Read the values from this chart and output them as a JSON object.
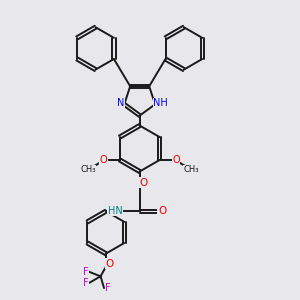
{
  "bg_color": "#e8e8ec",
  "bond_color": "#1a1a1a",
  "N_color": "#0000ee",
  "O_color": "#ee0000",
  "F_color": "#cc00cc",
  "H_color": "#008080",
  "line_width": 1.4,
  "figsize": [
    3.0,
    3.0
  ],
  "dpi": 100,
  "xlim": [
    0,
    10
  ],
  "ylim": [
    0,
    10
  ]
}
